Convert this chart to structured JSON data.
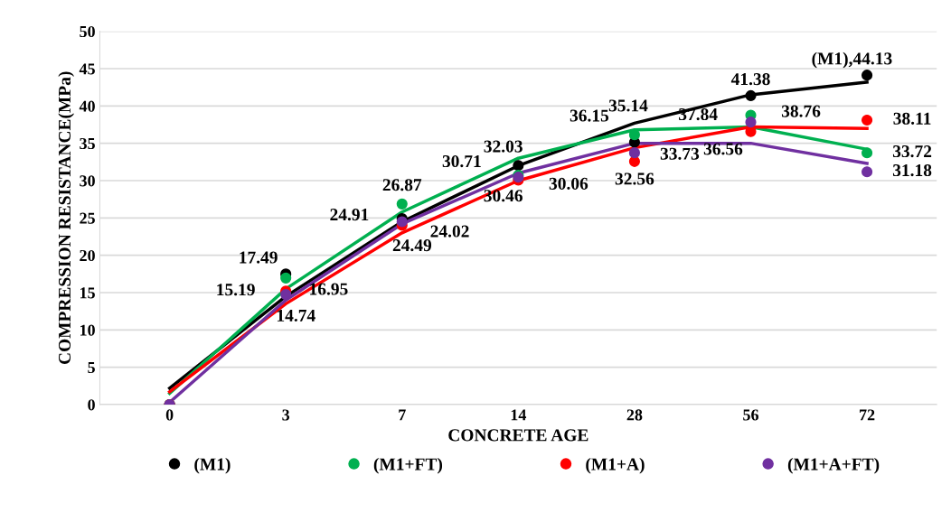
{
  "chart_data": {
    "type": "scatter",
    "xlabel": "CONCRETE AGE",
    "ylabel": "COMPRESSION RESISTANCE(MPa)",
    "categories": [
      "0",
      "3",
      "7",
      "14",
      "28",
      "56",
      "72"
    ],
    "ylim": [
      0,
      50
    ],
    "yticks": [
      0,
      5,
      10,
      15,
      20,
      25,
      30,
      35,
      40,
      45,
      50
    ],
    "grid": "y",
    "legend": "bottom",
    "marker": "circle",
    "series": [
      {
        "name": "(M1)",
        "color": "#000000",
        "values": [
          0,
          17.49,
          24.91,
          32.03,
          35.14,
          41.38,
          44.13
        ],
        "value_labels": [
          null,
          "17.49",
          "24.91",
          "32.03",
          "35.14",
          "41.38",
          "(M1),44.13"
        ]
      },
      {
        "name": "(M1+FT)",
        "color": "#00b050",
        "values": [
          0,
          16.95,
          26.87,
          30.71,
          36.15,
          38.76,
          33.72
        ],
        "value_labels": [
          null,
          "16.95",
          "26.87",
          "30.71",
          "36.15",
          "38.76",
          "33.72"
        ]
      },
      {
        "name": "(M1+A)",
        "color": "#ff0000",
        "values": [
          0,
          15.19,
          24.02,
          30.06,
          32.56,
          36.56,
          38.11
        ],
        "value_labels": [
          null,
          "15.19",
          "24.02",
          "30.06",
          "32.56",
          "36.56",
          "38.11"
        ]
      },
      {
        "name": "(M1+A+FT)",
        "color": "#7030a0",
        "values": [
          0,
          14.74,
          24.49,
          30.46,
          33.73,
          37.84,
          31.18
        ],
        "value_labels": [
          null,
          "14.74",
          "24.49",
          "30.46",
          "33.73",
          "37.84",
          "31.18"
        ]
      },
      {
        "type": "line",
        "marker": "none",
        "color": "#000000",
        "values": [
          2.2,
          14.5,
          24.5,
          32,
          37.7,
          41.5,
          43.2
        ]
      },
      {
        "type": "line",
        "marker": "none",
        "color": "#00b050",
        "values": [
          1.5,
          15.5,
          25.8,
          33,
          36.8,
          37.2,
          34.2
        ]
      },
      {
        "type": "line",
        "marker": "none",
        "color": "#ff0000",
        "values": [
          1.7,
          13.5,
          23,
          30,
          34.4,
          37.2,
          37
        ]
      },
      {
        "type": "line",
        "marker": "none",
        "color": "#7030a0",
        "values": [
          0.3,
          14,
          24.2,
          31,
          35,
          35,
          32.3
        ]
      }
    ]
  }
}
